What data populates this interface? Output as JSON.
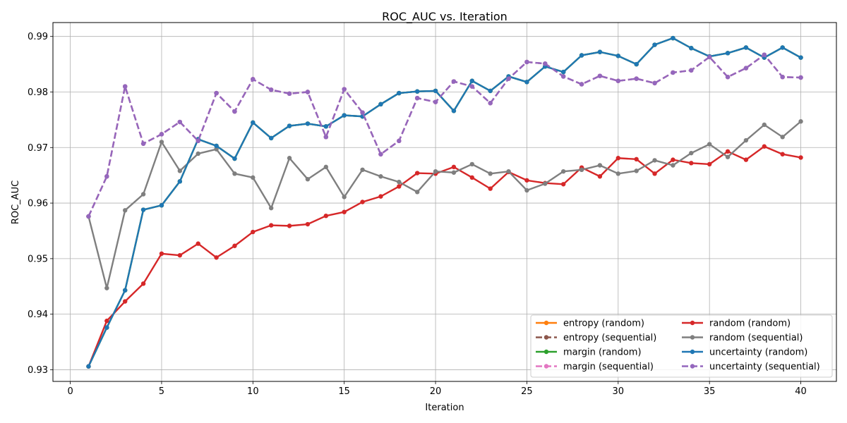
{
  "chart_data": {
    "type": "line",
    "title": "ROC_AUC vs. Iteration",
    "xlabel": "Iteration",
    "ylabel": "ROC_AUC",
    "xlim": [
      -0.95,
      41.95
    ],
    "ylim": [
      0.9279,
      0.9925
    ],
    "xticks": [
      0,
      5,
      10,
      15,
      20,
      25,
      30,
      35,
      40
    ],
    "yticks": [
      0.93,
      0.94,
      0.95,
      0.96,
      0.97,
      0.98,
      0.99
    ],
    "ytick_labels": [
      "0.93",
      "0.94",
      "0.95",
      "0.96",
      "0.97",
      "0.98",
      "0.99"
    ],
    "grid": true,
    "legend_position": "lower-right",
    "legend_columns": 2,
    "x": [
      1,
      2,
      3,
      4,
      5,
      6,
      7,
      8,
      9,
      10,
      11,
      12,
      13,
      14,
      15,
      16,
      17,
      18,
      19,
      20,
      21,
      22,
      23,
      24,
      25,
      26,
      27,
      28,
      29,
      30,
      31,
      32,
      33,
      34,
      35,
      36,
      37,
      38,
      39,
      40
    ],
    "series": [
      {
        "name": "entropy (random)",
        "color": "#ff7f0e",
        "dashed": false,
        "hidden_behind": "uncertainty (random)",
        "values": [
          0.9306,
          0.9376,
          0.9443,
          0.9588,
          0.9596,
          0.9639,
          0.9715,
          0.9703,
          0.968,
          0.9745,
          0.9717,
          0.9739,
          0.9743,
          0.9738,
          0.9758,
          0.9756,
          0.9778,
          0.9798,
          0.9801,
          0.9802,
          0.9766,
          0.982,
          0.9802,
          0.9828,
          0.9818,
          0.9846,
          0.9836,
          0.9866,
          0.9872,
          0.9865,
          0.985,
          0.9885,
          0.9897,
          0.9879,
          0.9864,
          0.987,
          0.988,
          0.9862,
          0.988,
          0.9862
        ]
      },
      {
        "name": "entropy (sequential)",
        "color": "#8c564b",
        "dashed": true,
        "hidden_behind": "uncertainty (sequential)",
        "values": [
          0.9576,
          0.9648,
          0.981,
          0.9707,
          0.9724,
          0.9746,
          0.9712,
          0.9798,
          0.9765,
          0.9823,
          0.9804,
          0.9797,
          0.98,
          0.9719,
          0.9805,
          0.9763,
          0.9688,
          0.9712,
          0.9789,
          0.9782,
          0.9819,
          0.981,
          0.978,
          0.9824,
          0.9854,
          0.9851,
          0.9828,
          0.9814,
          0.9829,
          0.982,
          0.9824,
          0.9816,
          0.9835,
          0.9839,
          0.9863,
          0.9827,
          0.9843,
          0.9867,
          0.9827,
          0.9826
        ]
      },
      {
        "name": "margin (random)",
        "color": "#2ca02c",
        "dashed": false,
        "hidden_behind": "uncertainty (random)",
        "values": [
          0.9306,
          0.9376,
          0.9443,
          0.9588,
          0.9596,
          0.9639,
          0.9715,
          0.9703,
          0.968,
          0.9745,
          0.9717,
          0.9739,
          0.9743,
          0.9738,
          0.9758,
          0.9756,
          0.9778,
          0.9798,
          0.9801,
          0.9802,
          0.9766,
          0.982,
          0.9802,
          0.9828,
          0.9818,
          0.9846,
          0.9836,
          0.9866,
          0.9872,
          0.9865,
          0.985,
          0.9885,
          0.9897,
          0.9879,
          0.9864,
          0.987,
          0.988,
          0.9862,
          0.988,
          0.9862
        ]
      },
      {
        "name": "margin (sequential)",
        "color": "#e377c2",
        "dashed": true,
        "hidden_behind": "uncertainty (sequential)",
        "values": [
          0.9576,
          0.9648,
          0.981,
          0.9707,
          0.9724,
          0.9746,
          0.9712,
          0.9798,
          0.9765,
          0.9823,
          0.9804,
          0.9797,
          0.98,
          0.9719,
          0.9805,
          0.9763,
          0.9688,
          0.9712,
          0.9789,
          0.9782,
          0.9819,
          0.981,
          0.978,
          0.9824,
          0.9854,
          0.9851,
          0.9828,
          0.9814,
          0.9829,
          0.982,
          0.9824,
          0.9816,
          0.9835,
          0.9839,
          0.9863,
          0.9827,
          0.9843,
          0.9867,
          0.9827,
          0.9826
        ]
      },
      {
        "name": "random (random)",
        "color": "#d62728",
        "dashed": false,
        "values": [
          0.9306,
          0.9388,
          0.9423,
          0.9455,
          0.9509,
          0.9506,
          0.9527,
          0.9502,
          0.9523,
          0.9548,
          0.956,
          0.9559,
          0.9562,
          0.9577,
          0.9584,
          0.9602,
          0.9612,
          0.963,
          0.9654,
          0.9653,
          0.9665,
          0.9646,
          0.9626,
          0.9656,
          0.9641,
          0.9636,
          0.9634,
          0.9664,
          0.9648,
          0.9681,
          0.9679,
          0.9653,
          0.9678,
          0.9672,
          0.967,
          0.9693,
          0.9678,
          0.9702,
          0.9688,
          0.9682
        ]
      },
      {
        "name": "random (sequential)",
        "color": "#7f7f7f",
        "dashed": false,
        "values": [
          0.9576,
          0.9447,
          0.9587,
          0.9616,
          0.971,
          0.9658,
          0.9689,
          0.9697,
          0.9653,
          0.9646,
          0.9591,
          0.9681,
          0.9643,
          0.9665,
          0.9611,
          0.966,
          0.9648,
          0.9638,
          0.962,
          0.9657,
          0.9655,
          0.967,
          0.9653,
          0.9657,
          0.9623,
          0.9635,
          0.9657,
          0.966,
          0.9668,
          0.9653,
          0.9658,
          0.9677,
          0.9668,
          0.969,
          0.9706,
          0.9683,
          0.9713,
          0.9741,
          0.9719,
          0.9747
        ]
      },
      {
        "name": "uncertainty (random)",
        "color": "#1f77b4",
        "dashed": false,
        "values": [
          0.9306,
          0.9376,
          0.9443,
          0.9588,
          0.9596,
          0.9639,
          0.9715,
          0.9703,
          0.968,
          0.9745,
          0.9717,
          0.9739,
          0.9743,
          0.9738,
          0.9758,
          0.9756,
          0.9778,
          0.9798,
          0.9801,
          0.9802,
          0.9766,
          0.982,
          0.9802,
          0.9828,
          0.9818,
          0.9846,
          0.9836,
          0.9866,
          0.9872,
          0.9865,
          0.985,
          0.9885,
          0.9897,
          0.9879,
          0.9864,
          0.987,
          0.988,
          0.9862,
          0.988,
          0.9862
        ]
      },
      {
        "name": "uncertainty (sequential)",
        "color": "#9467bd",
        "dashed": true,
        "values": [
          0.9576,
          0.9648,
          0.981,
          0.9707,
          0.9724,
          0.9746,
          0.9712,
          0.9798,
          0.9765,
          0.9823,
          0.9804,
          0.9797,
          0.98,
          0.9719,
          0.9805,
          0.9763,
          0.9688,
          0.9712,
          0.9789,
          0.9782,
          0.9819,
          0.981,
          0.978,
          0.9824,
          0.9854,
          0.9851,
          0.9828,
          0.9814,
          0.9829,
          0.982,
          0.9824,
          0.9816,
          0.9835,
          0.9839,
          0.9863,
          0.9827,
          0.9843,
          0.9867,
          0.9827,
          0.9826
        ]
      }
    ]
  }
}
